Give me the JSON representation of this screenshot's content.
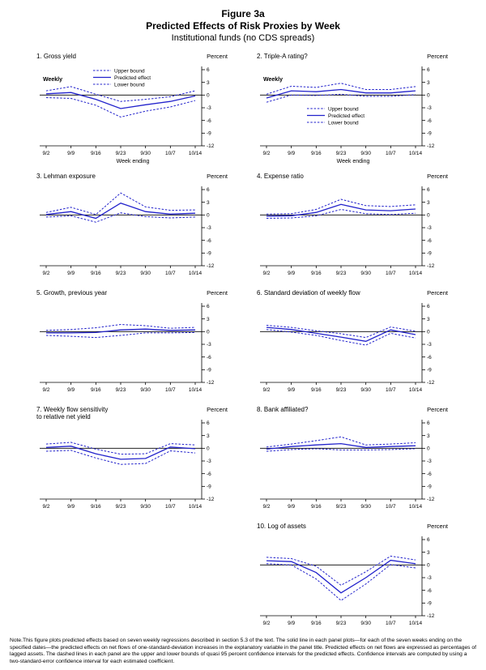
{
  "header": {
    "figure_label": "Figure 3a",
    "title": "Predicted Effects of Risk Proxies by Week",
    "subtitle": "Institutional funds (no CDS spreads)"
  },
  "colors": {
    "line": "#2222cc",
    "axis": "#000000"
  },
  "legend": {
    "items": [
      {
        "label": "Upper bound",
        "style": "dashed"
      },
      {
        "label": "Predicted effect",
        "style": "solid"
      },
      {
        "label": "Lower bound",
        "style": "dashed"
      }
    ]
  },
  "chart_data": [
    {
      "type": "line",
      "title": "1. Gross yield",
      "unit": "Percent",
      "annotations": [
        "Weekly"
      ],
      "show_legend": true,
      "legend_position": "top",
      "x_axis_label": "Week ending",
      "x": [
        "9/2",
        "9/9",
        "9/16",
        "9/23",
        "9/30",
        "10/7",
        "10/14"
      ],
      "ylim": [
        -12,
        6
      ],
      "yticks": [
        6,
        3,
        0,
        -3,
        -6,
        -9,
        -12
      ],
      "series": [
        {
          "name": "Upper bound",
          "style": "dashed",
          "values": [
            1.0,
            2.0,
            0.2,
            -1.5,
            -1.0,
            -0.4,
            1.0
          ]
        },
        {
          "name": "Predicted effect",
          "style": "solid",
          "values": [
            0.3,
            0.6,
            -1.0,
            -3.2,
            -2.3,
            -1.5,
            -0.2
          ]
        },
        {
          "name": "Lower bound",
          "style": "dashed",
          "values": [
            -0.6,
            -0.8,
            -2.4,
            -5.2,
            -3.8,
            -2.8,
            -1.3
          ]
        }
      ]
    },
    {
      "type": "line",
      "title": "2. Triple-A rating?",
      "unit": "Percent",
      "annotations": [
        "Weekly"
      ],
      "show_legend": true,
      "legend_position": "middle",
      "x_axis_label": "Week ending",
      "x": [
        "9/2",
        "9/9",
        "9/16",
        "9/23",
        "9/30",
        "10/7",
        "10/14"
      ],
      "ylim": [
        -12,
        6
      ],
      "yticks": [
        6,
        3,
        0,
        -3,
        -6,
        -9,
        -12
      ],
      "series": [
        {
          "name": "Upper bound",
          "style": "dashed",
          "values": [
            0.2,
            2.1,
            1.8,
            2.8,
            1.3,
            1.3,
            2.0
          ]
        },
        {
          "name": "Predicted effect",
          "style": "solid",
          "values": [
            -0.7,
            1.0,
            0.8,
            1.3,
            0.5,
            0.5,
            1.0
          ]
        },
        {
          "name": "Lower bound",
          "style": "dashed",
          "values": [
            -1.7,
            0.0,
            -0.1,
            0.2,
            -0.3,
            -0.3,
            0.1
          ]
        }
      ]
    },
    {
      "type": "line",
      "title": "3. Lehman exposure",
      "unit": "Percent",
      "annotations": [],
      "show_legend": false,
      "x": [
        "9/2",
        "9/9",
        "9/16",
        "9/23",
        "9/30",
        "10/7",
        "10/14"
      ],
      "ylim": [
        -12,
        6
      ],
      "yticks": [
        6,
        3,
        0,
        -3,
        -6,
        -9,
        -12
      ],
      "series": [
        {
          "name": "Upper bound",
          "style": "dashed",
          "values": [
            0.6,
            1.8,
            0.1,
            5.2,
            1.9,
            1.1,
            1.2
          ]
        },
        {
          "name": "Predicted effect",
          "style": "solid",
          "values": [
            0.1,
            0.8,
            -0.8,
            2.8,
            0.8,
            0.2,
            0.4
          ]
        },
        {
          "name": "Lower bound",
          "style": "dashed",
          "values": [
            -0.5,
            -0.2,
            -1.7,
            0.5,
            -0.4,
            -0.7,
            -0.5
          ]
        }
      ]
    },
    {
      "type": "line",
      "title": "4. Expense ratio",
      "unit": "Percent",
      "annotations": [],
      "show_legend": false,
      "x": [
        "9/2",
        "9/9",
        "9/16",
        "9/23",
        "9/30",
        "10/7",
        "10/14"
      ],
      "ylim": [
        -12,
        6
      ],
      "yticks": [
        6,
        3,
        0,
        -3,
        -6,
        -9,
        -12
      ],
      "series": [
        {
          "name": "Upper bound",
          "style": "dashed",
          "values": [
            0.2,
            0.3,
            1.3,
            3.7,
            2.2,
            2.0,
            2.4
          ]
        },
        {
          "name": "Predicted effect",
          "style": "solid",
          "values": [
            -0.3,
            -0.2,
            0.6,
            2.5,
            1.2,
            1.0,
            1.4
          ]
        },
        {
          "name": "Lower bound",
          "style": "dashed",
          "values": [
            -0.8,
            -0.7,
            -0.2,
            1.3,
            0.3,
            0.1,
            0.4
          ]
        }
      ]
    },
    {
      "type": "line",
      "title": "5. Growth, previous year",
      "unit": "Percent",
      "annotations": [],
      "show_legend": false,
      "x": [
        "9/2",
        "9/9",
        "9/16",
        "9/23",
        "9/30",
        "10/7",
        "10/14"
      ],
      "ylim": [
        -12,
        6
      ],
      "yticks": [
        6,
        3,
        0,
        -3,
        -6,
        -9,
        -12
      ],
      "series": [
        {
          "name": "Upper bound",
          "style": "dashed",
          "values": [
            0.3,
            0.5,
            0.9,
            1.7,
            1.4,
            0.8,
            1.0
          ]
        },
        {
          "name": "Predicted effect",
          "style": "solid",
          "values": [
            -0.3,
            -0.3,
            -0.2,
            0.4,
            0.6,
            0.3,
            0.4
          ]
        },
        {
          "name": "Lower bound",
          "style": "dashed",
          "values": [
            -0.9,
            -1.1,
            -1.4,
            -0.9,
            -0.3,
            -0.3,
            -0.2
          ]
        }
      ]
    },
    {
      "type": "line",
      "title": "6. Standard deviation of weekly flow",
      "unit": "Percent",
      "annotations": [],
      "show_legend": false,
      "x": [
        "9/2",
        "9/9",
        "9/16",
        "9/23",
        "9/30",
        "10/7",
        "10/14"
      ],
      "ylim": [
        -12,
        6
      ],
      "yticks": [
        6,
        3,
        0,
        -3,
        -6,
        -9,
        -12
      ],
      "series": [
        {
          "name": "Upper bound",
          "style": "dashed",
          "values": [
            1.5,
            1.0,
            0.2,
            -0.5,
            -1.4,
            1.1,
            0.1
          ]
        },
        {
          "name": "Predicted effect",
          "style": "solid",
          "values": [
            1.0,
            0.5,
            -0.4,
            -1.3,
            -2.3,
            0.4,
            -0.7
          ]
        },
        {
          "name": "Lower bound",
          "style": "dashed",
          "values": [
            0.5,
            -0.1,
            -0.9,
            -2.1,
            -3.2,
            -0.4,
            -1.5
          ]
        }
      ]
    },
    {
      "type": "line",
      "title": "7. Weekly flow sensitivity\nto relative net yield",
      "unit": "Percent",
      "annotations": [],
      "show_legend": false,
      "x": [
        "9/2",
        "9/9",
        "9/16",
        "9/23",
        "9/30",
        "10/7",
        "10/14"
      ],
      "ylim": [
        -12,
        6
      ],
      "yticks": [
        6,
        3,
        0,
        -3,
        -6,
        -9,
        -12
      ],
      "series": [
        {
          "name": "Upper bound",
          "style": "dashed",
          "values": [
            1.0,
            1.4,
            -0.2,
            -1.4,
            -1.3,
            1.1,
            0.8
          ]
        },
        {
          "name": "Predicted effect",
          "style": "solid",
          "values": [
            0.2,
            0.5,
            -1.3,
            -2.6,
            -2.4,
            0.3,
            -0.1
          ]
        },
        {
          "name": "Lower bound",
          "style": "dashed",
          "values": [
            -0.7,
            -0.5,
            -2.3,
            -3.8,
            -3.6,
            -0.6,
            -1.1
          ]
        }
      ]
    },
    {
      "type": "line",
      "title": "8. Bank affiliated?",
      "unit": "Percent",
      "annotations": [],
      "show_legend": false,
      "x": [
        "9/2",
        "9/9",
        "9/16",
        "9/23",
        "9/30",
        "10/7",
        "10/14"
      ],
      "ylim": [
        -12,
        6
      ],
      "yticks": [
        6,
        3,
        0,
        -3,
        -6,
        -9,
        -12
      ],
      "series": [
        {
          "name": "Upper bound",
          "style": "dashed",
          "values": [
            0.3,
            1.0,
            1.8,
            2.7,
            0.8,
            1.0,
            1.3
          ]
        },
        {
          "name": "Predicted effect",
          "style": "solid",
          "values": [
            -0.2,
            0.4,
            0.8,
            1.1,
            0.2,
            0.4,
            0.6
          ]
        },
        {
          "name": "Lower bound",
          "style": "dashed",
          "values": [
            -0.7,
            -0.3,
            -0.1,
            -0.4,
            -0.4,
            -0.3,
            -0.1
          ]
        }
      ]
    },
    {
      "type": "line",
      "title": "10. Log of assets",
      "unit": "Percent",
      "annotations": [],
      "show_legend": false,
      "right_column": true,
      "x": [
        "9/2",
        "9/9",
        "9/16",
        "9/23",
        "9/30",
        "10/7",
        "10/14"
      ],
      "ylim": [
        -12,
        6
      ],
      "yticks": [
        6,
        3,
        0,
        -3,
        -6,
        -9,
        -12
      ],
      "series": [
        {
          "name": "Upper bound",
          "style": "dashed",
          "values": [
            1.8,
            1.5,
            -0.3,
            -4.8,
            -1.6,
            2.1,
            1.2
          ]
        },
        {
          "name": "Predicted effect",
          "style": "solid",
          "values": [
            1.0,
            0.8,
            -1.8,
            -6.6,
            -3.0,
            1.1,
            0.3
          ]
        },
        {
          "name": "Lower bound",
          "style": "dashed",
          "values": [
            0.3,
            0.0,
            -3.3,
            -8.4,
            -4.5,
            0.1,
            -0.7
          ]
        }
      ]
    }
  ],
  "note": "Note.This figure plots predicted effects based on seven weekly regressions described in section 5.3 of the text. The solid line in each panel plots—for each of the seven weeks ending on the specified dates—the predicted effects on net flows of one-standard-deviation increases in the explanatory variable in the panel title. Predicted effects on net flows are expressed as percentages of lagged assets. The dashed lines in each panel are the upper and lower bounds of quasi 95 percent confidence intervals for the predicted effects. Confidence intervals are computed by using a two-standard-error confidence interval for each estimated coefficient."
}
